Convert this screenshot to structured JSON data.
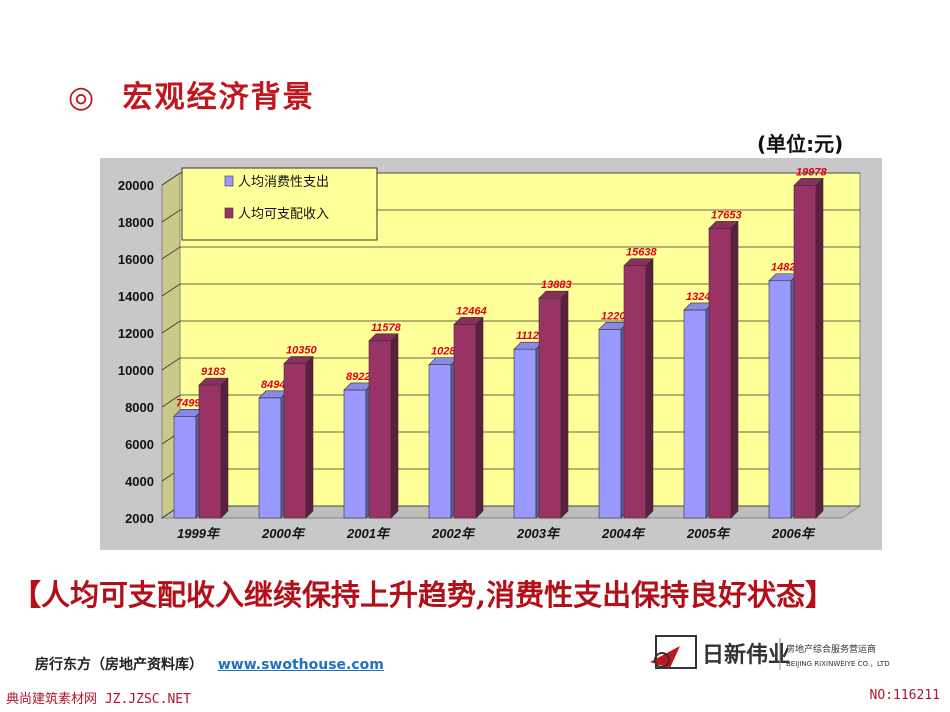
{
  "slide": {
    "title_icon": "◎",
    "title": "宏观经济背景",
    "unit_label": "(单位:元)",
    "conclusion": "【人均可支配收入继续保持上升趋势,消费性支出保持良好状态】"
  },
  "footer": {
    "source": "房行东方（房地产资料库）",
    "url": "www.swothouse.com",
    "company_name": "日新伟业",
    "company_tagline": "房地产综合服务营运商",
    "company_en": "BEIJING RIXINWEIYE CO.，LTD",
    "watermark_left": "典尚建筑素材网 JZ.JZSC.NET",
    "watermark_right": "NO:116211"
  },
  "colors": {
    "title": "#c0161d",
    "series_a": "#9999ff",
    "series_b": "#993366",
    "plot_bg": "#ffff99",
    "panel_bg": "#c8c8c8",
    "data_label": "#e0001a"
  },
  "chart_data": {
    "type": "bar",
    "title": "",
    "xlabel": "",
    "ylabel": "",
    "categories": [
      "1999年",
      "2000年",
      "2001年",
      "2002年",
      "2003年",
      "2004年",
      "2005年",
      "2006年"
    ],
    "series": [
      {
        "name": "人均消费性支出",
        "values": [
          7499,
          8494,
          8922,
          10286,
          11124,
          12200,
          13244,
          14825
        ]
      },
      {
        "name": "人均可支配收入",
        "values": [
          9183,
          10350,
          11578,
          12464,
          13883,
          15638,
          17653,
          19978
        ]
      }
    ],
    "ylim": [
      2000,
      20000
    ],
    "yticks": [
      2000,
      4000,
      6000,
      8000,
      10000,
      12000,
      14000,
      16000,
      18000,
      20000
    ],
    "grid": true,
    "legend_position": "top-left",
    "style": "3d-clustered-column"
  }
}
